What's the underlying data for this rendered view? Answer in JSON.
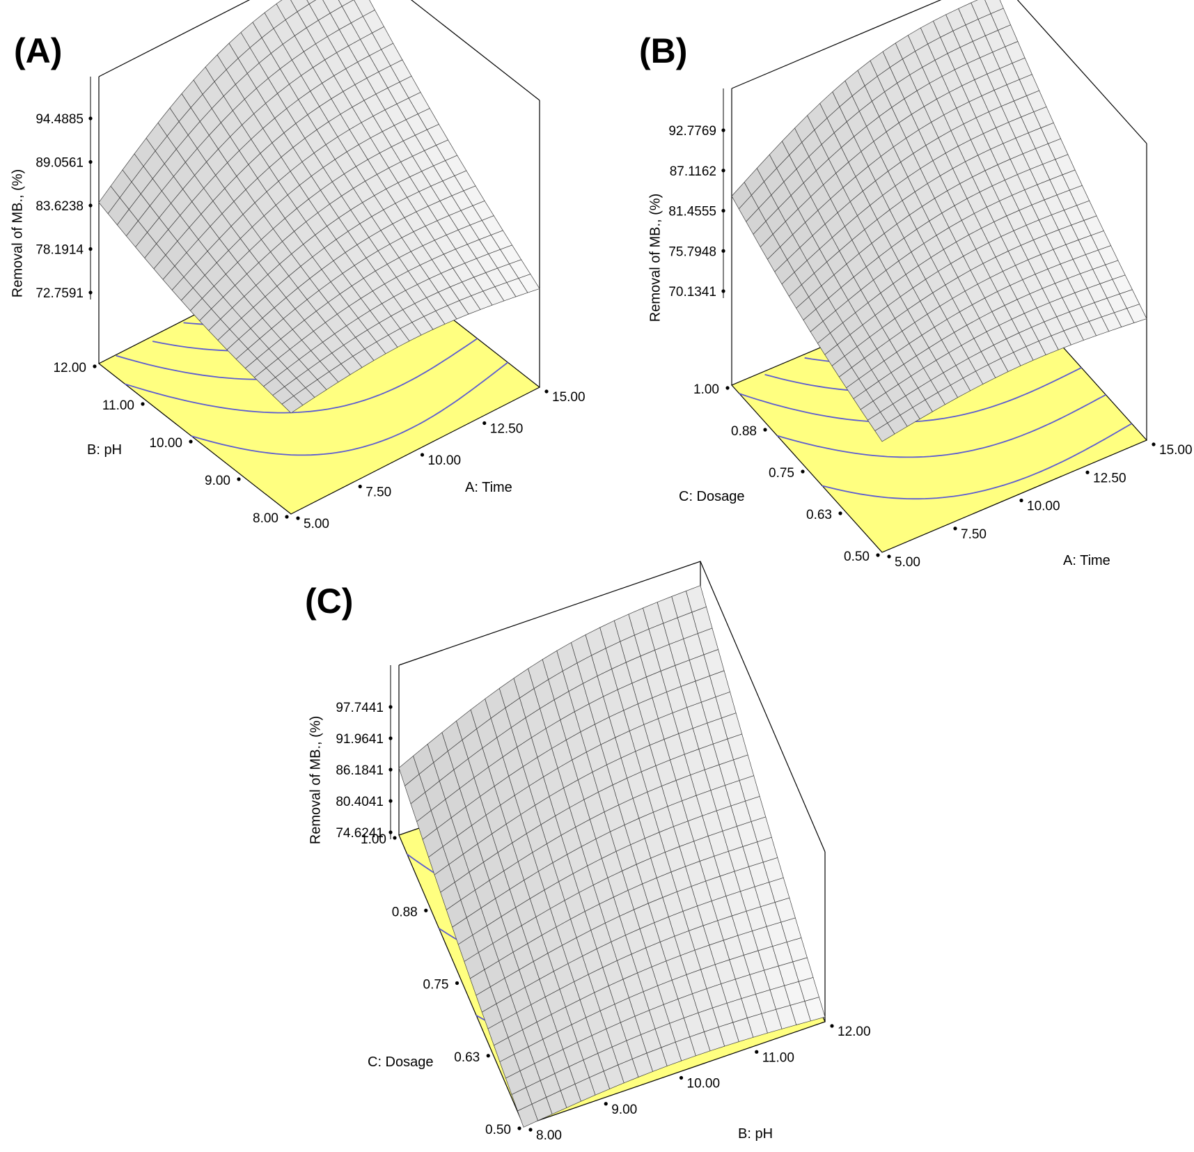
{
  "colors": {
    "floor": "#ffff80",
    "contour": "#5b5bd2",
    "mesh": "#404040",
    "box": "#000000"
  },
  "chart_data": [
    {
      "id": "A",
      "type": "surface3d",
      "panel_label": "(A)",
      "zlabel": "Removal  of MB., (%)",
      "xaxis": {
        "label": "A: Time",
        "ticks": [
          "5.00",
          "7.50",
          "10.00",
          "12.50",
          "15.00"
        ],
        "range": [
          5,
          15
        ]
      },
      "yaxis": {
        "label": "B: pH",
        "ticks": [
          "8.00",
          "9.00",
          "10.00",
          "11.00",
          "12.00"
        ],
        "range": [
          8,
          12
        ]
      },
      "zaxis": {
        "ticks": [
          "72.7591",
          "78.1914",
          "83.6238",
          "89.0561",
          "94.4885"
        ]
      },
      "surface_corners": {
        "x_min_y_min": 76.5,
        "x_max_y_min": 76.2,
        "x_min_y_max": 84.0,
        "x_max_y_max": 98.5
      },
      "grid": true
    },
    {
      "id": "B",
      "type": "surface3d",
      "panel_label": "(B)",
      "zlabel": "Removal  of MB., (%)",
      "xaxis": {
        "label": "A: Time",
        "ticks": [
          "5.00",
          "7.50",
          "10.00",
          "12.50",
          "15.00"
        ],
        "range": [
          5,
          15
        ]
      },
      "yaxis": {
        "label": "C: Dosage",
        "ticks": [
          "0.50",
          "0.63",
          "0.75",
          "0.88",
          "1.00"
        ],
        "range": [
          0.5,
          1.0
        ]
      },
      "zaxis": {
        "ticks": [
          "70.1341",
          "75.7948",
          "81.4555",
          "87.1162",
          "92.7769"
        ]
      },
      "surface_corners": {
        "x_min_y_min": 72.5,
        "x_max_y_min": 74.0,
        "x_min_y_max": 83.5,
        "x_max_y_max": 96.5
      },
      "grid": true
    },
    {
      "id": "C",
      "type": "surface3d",
      "panel_label": "(C)",
      "zlabel": "Removal  of MB., (%)",
      "xaxis": {
        "label": "B: pH",
        "ticks": [
          "8.00",
          "9.00",
          "10.00",
          "11.00",
          "12.00"
        ],
        "range": [
          8,
          12
        ]
      },
      "yaxis": {
        "label": "C: Dosage",
        "ticks": [
          "0.50",
          "0.63",
          "0.75",
          "0.88",
          "1.00"
        ],
        "range": [
          0.5,
          1.0
        ]
      },
      "zaxis": {
        "ticks": [
          "74.6241",
          "80.4041",
          "86.1841",
          "91.9641",
          "97.7441"
        ]
      },
      "surface_corners": {
        "x_min_y_min": 73.8,
        "x_max_y_min": 75.0,
        "x_min_y_max": 86.5,
        "x_max_y_max": 101.0
      },
      "grid": true
    }
  ]
}
